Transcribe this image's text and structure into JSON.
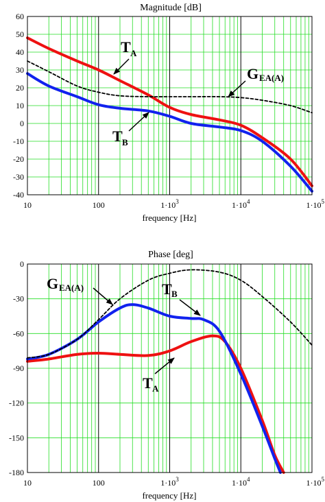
{
  "chart_data": [
    {
      "type": "line",
      "title": "Magnitude [dB]",
      "xlabel": "frequency [Hz]",
      "ylabel": "",
      "xscale": "log",
      "xlim": [
        10,
        100000
      ],
      "ylim": [
        -40,
        60
      ],
      "grid": true,
      "xticks": [
        10,
        100,
        1000,
        10000,
        100000
      ],
      "xtick_labels": [
        "10",
        "100",
        "1·10",
        "1·10",
        "1·10"
      ],
      "xtick_exps": [
        "",
        "",
        "3",
        "4",
        "5"
      ],
      "yticks": [
        60,
        50,
        40,
        30,
        20,
        10,
        0,
        -10,
        -20,
        -30,
        -40
      ],
      "ytick_labels": [
        "60",
        "50",
        "40",
        "30",
        "20",
        "10",
        "0",
        "-10",
        "-20",
        "-30",
        "-40"
      ],
      "series": [
        {
          "name": "T_A",
          "color": "#ee1111",
          "style": "solid",
          "x": [
            10,
            20,
            50,
            100,
            200,
            500,
            1000,
            2000,
            5000,
            10000,
            20000,
            50000,
            100000
          ],
          "y": [
            48,
            42,
            35,
            30,
            24,
            16,
            9,
            5,
            2,
            -1,
            -8,
            -20,
            -35
          ]
        },
        {
          "name": "T_B",
          "color": "#1122ee",
          "style": "solid",
          "x": [
            10,
            20,
            50,
            100,
            200,
            500,
            1000,
            2000,
            5000,
            10000,
            20000,
            50000,
            100000
          ],
          "y": [
            28,
            21,
            15,
            10.5,
            8.5,
            7,
            4,
            0,
            -2,
            -4,
            -10,
            -24,
            -38
          ]
        },
        {
          "name": "G_EA(A)",
          "color": "#000000",
          "style": "dashed",
          "x": [
            10,
            20,
            50,
            100,
            200,
            500,
            1000,
            2000,
            5000,
            10000,
            20000,
            50000,
            100000
          ],
          "y": [
            35,
            29,
            21,
            17.5,
            15.5,
            15,
            15,
            15,
            15,
            14.5,
            13,
            10,
            6
          ]
        }
      ],
      "annotations": [
        {
          "main": "T",
          "sub": "A"
        },
        {
          "main": "G",
          "sub": "EA(A)"
        },
        {
          "main": "T",
          "sub": "B"
        }
      ]
    },
    {
      "type": "line",
      "title": "Phase [deg]",
      "xlabel": "frequency [Hz]",
      "ylabel": "",
      "xscale": "log",
      "xlim": [
        10,
        100000
      ],
      "ylim": [
        -180,
        0
      ],
      "grid": true,
      "xticks": [
        10,
        100,
        1000,
        10000,
        100000
      ],
      "xtick_labels": [
        "10",
        "100",
        "1·10",
        "1·10",
        "1·10"
      ],
      "xtick_exps": [
        "",
        "",
        "3",
        "4",
        "5"
      ],
      "yticks": [
        0,
        -30,
        -60,
        -90,
        -120,
        -150,
        -180
      ],
      "ytick_labels": [
        "0",
        "-30",
        "-60",
        "-90",
        "-120",
        "-150",
        "-180"
      ],
      "series": [
        {
          "name": "T_A",
          "color": "#ee1111",
          "style": "solid",
          "x": [
            10,
            20,
            50,
            100,
            200,
            500,
            1000,
            2000,
            4000,
            6000,
            10000,
            20000,
            30000,
            40000
          ],
          "y": [
            -84,
            -82,
            -78,
            -77,
            -78,
            -79,
            -75,
            -67,
            -62,
            -67,
            -90,
            -135,
            -165,
            -180
          ]
        },
        {
          "name": "T_B",
          "color": "#1122ee",
          "style": "solid",
          "x": [
            10,
            20,
            50,
            100,
            200,
            300,
            500,
            1000,
            2000,
            3000,
            5000,
            10000,
            20000,
            30000,
            36000
          ],
          "y": [
            -82,
            -78,
            -65,
            -50,
            -38,
            -35,
            -38,
            -45,
            -47,
            -48,
            -58,
            -95,
            -140,
            -168,
            -180
          ]
        },
        {
          "name": "G_EA(A)",
          "color": "#000000",
          "style": "dashed",
          "x": [
            10,
            20,
            50,
            100,
            200,
            500,
            1000,
            2000,
            5000,
            10000,
            20000,
            50000,
            100000
          ],
          "y": [
            -81,
            -78,
            -65,
            -48,
            -30,
            -14,
            -8,
            -5,
            -7,
            -14,
            -28,
            -50,
            -70
          ]
        }
      ],
      "annotations": [
        {
          "main": "G",
          "sub": "EA(A)"
        },
        {
          "main": "T",
          "sub": "B"
        },
        {
          "main": "T",
          "sub": "A"
        }
      ]
    }
  ]
}
